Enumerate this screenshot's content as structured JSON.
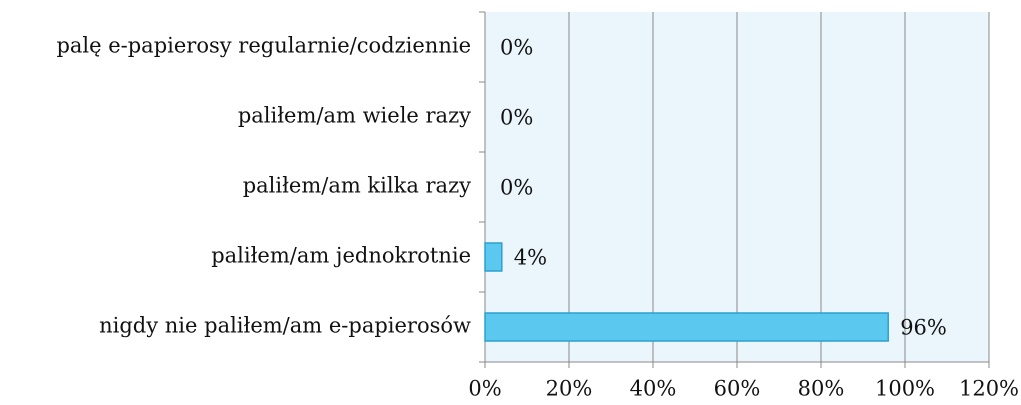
{
  "chart_data": {
    "type": "bar",
    "orientation": "horizontal",
    "categories": [
      "palę e-papierosy regularnie/codziennie",
      "paliłem/am wiele razy",
      "paliłem/am kilka razy",
      "paliłem/am jednokrotnie",
      "nigdy nie paliłem/am e-papierosów"
    ],
    "values": [
      0,
      0,
      0,
      4,
      96
    ],
    "value_labels": [
      "0%",
      "0%",
      "0%",
      "4%",
      "96%"
    ],
    "color": "#5bc8f0",
    "xlim": [
      0,
      120
    ],
    "xticks": [
      {
        "value": 0,
        "label": "0%"
      },
      {
        "value": 20,
        "label": "20%"
      },
      {
        "value": 40,
        "label": "40%"
      },
      {
        "value": 60,
        "label": "60%"
      },
      {
        "value": 80,
        "label": "80%"
      },
      {
        "value": 100,
        "label": "100%"
      },
      {
        "value": 120,
        "label": "120%"
      }
    ],
    "grid": true
  }
}
